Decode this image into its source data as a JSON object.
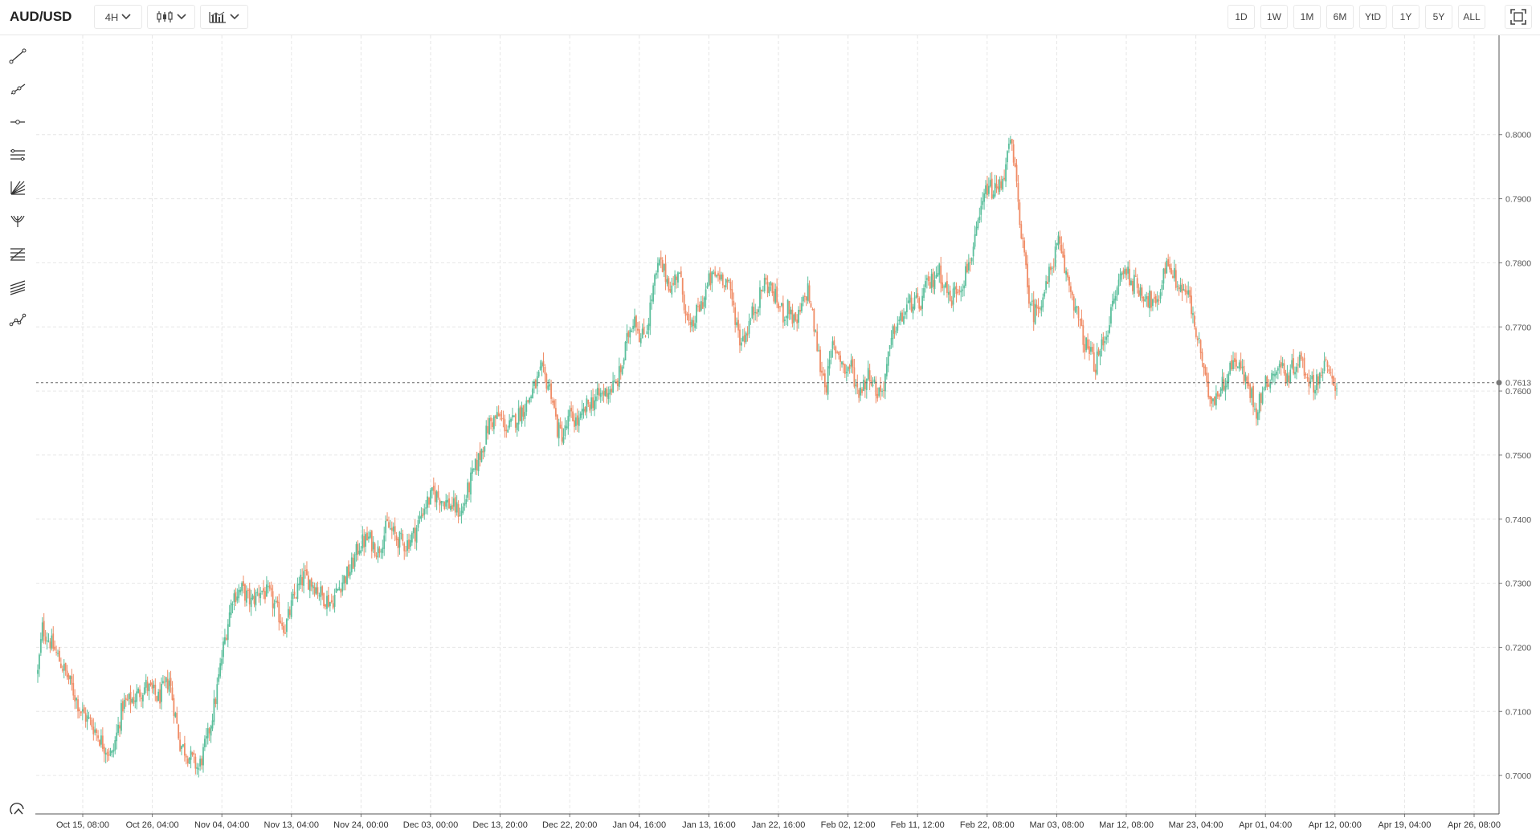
{
  "symbol": "AUD/USD",
  "toolbar": {
    "interval_label": "4H",
    "range_buttons": [
      "1D",
      "1W",
      "1M",
      "6M",
      "YtD",
      "1Y",
      "5Y",
      "ALL"
    ],
    "icons": [
      "candlestick-chart-icon",
      "indicators-icon",
      "fullscreen-icon"
    ]
  },
  "drawing_tools": [
    "trend-line-icon",
    "ray-icon",
    "horizontal-line-icon",
    "parallel-channel-icon",
    "fan-icon",
    "pitchfork-icon",
    "fib-retracement-icon",
    "fib-extension-icon",
    "path-icon",
    "crosshair-settings-icon"
  ],
  "colors": {
    "up": "#5bbf9c",
    "down": "#f08c66",
    "grid": "#e6e6e6"
  },
  "chart_data": {
    "type": "candlestick",
    "interval": "4H",
    "y_ticks": [
      "0.8000",
      "0.7900",
      "0.7800",
      "0.7700",
      "0.7600",
      "0.7500",
      "0.7400",
      "0.7300",
      "0.7200",
      "0.7100",
      "0.7000"
    ],
    "x_ticks": [
      "Oct 15, 08:00",
      "Oct 26, 04:00",
      "Nov 04, 04:00",
      "Nov 13, 04:00",
      "Nov 24, 00:00",
      "Dec 03, 00:00",
      "Dec 13, 20:00",
      "Dec 22, 20:00",
      "Jan 04, 16:00",
      "Jan 13, 16:00",
      "Jan 22, 16:00",
      "Feb 02, 12:00",
      "Feb 11, 12:00",
      "Feb 22, 08:00",
      "Mar 03, 08:00",
      "Mar 12, 08:00",
      "Mar 23, 04:00",
      "Apr 01, 04:00",
      "Apr 12, 00:00",
      "Apr 19, 04:00",
      "Apr 26, 08:00"
    ],
    "ylim": [
      0.694,
      0.8155
    ],
    "last_price": "0.7613",
    "grid": true,
    "trend_close": [
      [
        0,
        0.716
      ],
      [
        3,
        0.723
      ],
      [
        10,
        0.72
      ],
      [
        20,
        0.715
      ],
      [
        28,
        0.71
      ],
      [
        35,
        0.708
      ],
      [
        42,
        0.705
      ],
      [
        48,
        0.703
      ],
      [
        55,
        0.711
      ],
      [
        62,
        0.712
      ],
      [
        70,
        0.714
      ],
      [
        78,
        0.712
      ],
      [
        85,
        0.715
      ],
      [
        92,
        0.705
      ],
      [
        98,
        0.703
      ],
      [
        104,
        0.701
      ],
      [
        110,
        0.706
      ],
      [
        115,
        0.712
      ],
      [
        120,
        0.72
      ],
      [
        126,
        0.728
      ],
      [
        132,
        0.729
      ],
      [
        138,
        0.727
      ],
      [
        144,
        0.729
      ],
      [
        150,
        0.728
      ],
      [
        156,
        0.725
      ],
      [
        160,
        0.723
      ],
      [
        166,
        0.728
      ],
      [
        172,
        0.731
      ],
      [
        178,
        0.73
      ],
      [
        184,
        0.728
      ],
      [
        190,
        0.727
      ],
      [
        196,
        0.73
      ],
      [
        202,
        0.732
      ],
      [
        208,
        0.736
      ],
      [
        214,
        0.737
      ],
      [
        220,
        0.735
      ],
      [
        226,
        0.739
      ],
      [
        232,
        0.737
      ],
      [
        238,
        0.736
      ],
      [
        244,
        0.738
      ],
      [
        250,
        0.742
      ],
      [
        256,
        0.744
      ],
      [
        262,
        0.743
      ],
      [
        268,
        0.742
      ],
      [
        274,
        0.741
      ],
      [
        280,
        0.746
      ],
      [
        286,
        0.75
      ],
      [
        292,
        0.755
      ],
      [
        298,
        0.756
      ],
      [
        304,
        0.754
      ],
      [
        310,
        0.756
      ],
      [
        316,
        0.758
      ],
      [
        322,
        0.761
      ],
      [
        326,
        0.763
      ],
      [
        332,
        0.76
      ],
      [
        336,
        0.754
      ],
      [
        340,
        0.753
      ],
      [
        344,
        0.756
      ],
      [
        350,
        0.755
      ],
      [
        356,
        0.758
      ],
      [
        362,
        0.759
      ],
      [
        368,
        0.76
      ],
      [
        374,
        0.761
      ],
      [
        378,
        0.764
      ],
      [
        382,
        0.769
      ],
      [
        386,
        0.772
      ],
      [
        390,
        0.768
      ],
      [
        394,
        0.77
      ],
      [
        398,
        0.776
      ],
      [
        402,
        0.78
      ],
      [
        406,
        0.778
      ],
      [
        410,
        0.776
      ],
      [
        414,
        0.779
      ],
      [
        418,
        0.774
      ],
      [
        422,
        0.769
      ],
      [
        426,
        0.772
      ],
      [
        430,
        0.774
      ],
      [
        434,
        0.777
      ],
      [
        438,
        0.778
      ],
      [
        442,
        0.778
      ],
      [
        446,
        0.777
      ],
      [
        450,
        0.773
      ],
      [
        454,
        0.768
      ],
      [
        458,
        0.769
      ],
      [
        462,
        0.772
      ],
      [
        466,
        0.774
      ],
      [
        470,
        0.777
      ],
      [
        474,
        0.776
      ],
      [
        478,
        0.774
      ],
      [
        482,
        0.772
      ],
      [
        486,
        0.773
      ],
      [
        490,
        0.77
      ],
      [
        494,
        0.773
      ],
      [
        498,
        0.776
      ],
      [
        502,
        0.77
      ],
      [
        506,
        0.764
      ],
      [
        510,
        0.761
      ],
      [
        514,
        0.767
      ],
      [
        518,
        0.766
      ],
      [
        522,
        0.763
      ],
      [
        526,
        0.764
      ],
      [
        530,
        0.76
      ],
      [
        534,
        0.761
      ],
      [
        538,
        0.763
      ],
      [
        542,
        0.76
      ],
      [
        546,
        0.76
      ],
      [
        550,
        0.765
      ],
      [
        554,
        0.77
      ],
      [
        558,
        0.771
      ],
      [
        562,
        0.773
      ],
      [
        566,
        0.774
      ],
      [
        570,
        0.773
      ],
      [
        574,
        0.776
      ],
      [
        578,
        0.777
      ],
      [
        582,
        0.779
      ],
      [
        586,
        0.777
      ],
      [
        590,
        0.774
      ],
      [
        594,
        0.776
      ],
      [
        598,
        0.777
      ],
      [
        602,
        0.78
      ],
      [
        606,
        0.783
      ],
      [
        610,
        0.788
      ],
      [
        614,
        0.792
      ],
      [
        618,
        0.791
      ],
      [
        622,
        0.792
      ],
      [
        626,
        0.795
      ],
      [
        629,
        0.799
      ],
      [
        632,
        0.794
      ],
      [
        636,
        0.785
      ],
      [
        640,
        0.776
      ],
      [
        644,
        0.772
      ],
      [
        648,
        0.774
      ],
      [
        652,
        0.776
      ],
      [
        656,
        0.78
      ],
      [
        660,
        0.783
      ],
      [
        664,
        0.779
      ],
      [
        668,
        0.776
      ],
      [
        672,
        0.772
      ],
      [
        676,
        0.768
      ],
      [
        680,
        0.766
      ],
      [
        684,
        0.764
      ],
      [
        688,
        0.767
      ],
      [
        692,
        0.77
      ],
      [
        696,
        0.774
      ],
      [
        700,
        0.778
      ],
      [
        704,
        0.779
      ],
      [
        708,
        0.777
      ],
      [
        712,
        0.776
      ],
      [
        716,
        0.775
      ],
      [
        720,
        0.774
      ],
      [
        724,
        0.773
      ],
      [
        728,
        0.779
      ],
      [
        732,
        0.78
      ],
      [
        736,
        0.777
      ],
      [
        740,
        0.776
      ],
      [
        744,
        0.775
      ],
      [
        748,
        0.77
      ],
      [
        752,
        0.766
      ],
      [
        756,
        0.76
      ],
      [
        760,
        0.759
      ],
      [
        764,
        0.76
      ],
      [
        768,
        0.762
      ],
      [
        772,
        0.764
      ],
      [
        776,
        0.765
      ],
      [
        780,
        0.762
      ],
      [
        784,
        0.76
      ],
      [
        788,
        0.757
      ],
      [
        792,
        0.76
      ],
      [
        796,
        0.762
      ],
      [
        800,
        0.763
      ],
      [
        804,
        0.764
      ],
      [
        808,
        0.762
      ],
      [
        812,
        0.764
      ],
      [
        816,
        0.765
      ],
      [
        820,
        0.763
      ],
      [
        824,
        0.761
      ],
      [
        828,
        0.762
      ],
      [
        832,
        0.764
      ],
      [
        836,
        0.762
      ],
      [
        840,
        0.761
      ]
    ]
  }
}
